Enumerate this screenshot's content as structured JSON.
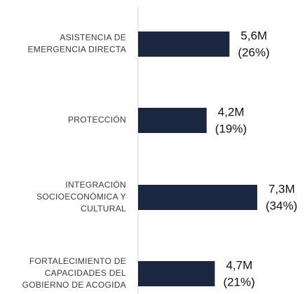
{
  "chart_data": {
    "type": "hbar",
    "categories": [
      [
        "ASISTENCIA DE",
        "EMERGENCIA DIRECTA"
      ],
      [
        "PROTECCIÓN"
      ],
      [
        "INTEGRACIÓN",
        "SOCIOECONÓMICA Y",
        "CULTURAL"
      ],
      [
        "FORTALECIMIENTO DE",
        "CAPACIDADES DEL",
        "GOBIERNO DE ACOGIDA"
      ]
    ],
    "values": [
      5.6,
      4.2,
      7.3,
      4.7
    ],
    "value_labels": [
      "5,6M",
      "4,2M",
      "7,3M",
      "4,7M"
    ],
    "percentages": [
      26,
      19,
      34,
      21
    ],
    "percentage_labels": [
      "(26%)",
      "(19%)",
      "(34%)",
      "(21%)"
    ],
    "color": "#1b2640"
  }
}
